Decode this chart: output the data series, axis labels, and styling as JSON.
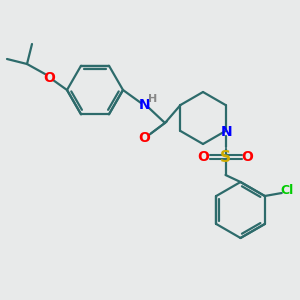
{
  "background_color": "#e8eaea",
  "bond_color": "#2d6b6b",
  "atom_colors": {
    "O": "#ff0000",
    "N": "#0000ff",
    "S": "#ccaa00",
    "Cl": "#00cc00",
    "H": "#888888",
    "C": "#2d6b6b"
  },
  "figsize": [
    3.0,
    3.0
  ],
  "dpi": 100
}
